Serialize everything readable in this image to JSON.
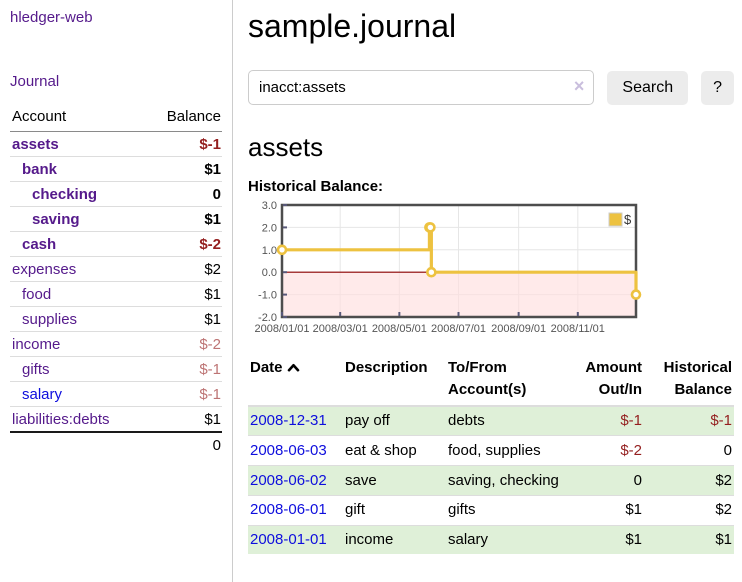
{
  "sidebar": {
    "app_title": "hledger-web",
    "journal_link": "Journal",
    "accounts_header": {
      "account": "Account",
      "balance": "Balance"
    },
    "accounts": [
      {
        "name": "assets",
        "depth": 0,
        "bold": true,
        "balance": "$-1",
        "negative": "strong"
      },
      {
        "name": "bank",
        "depth": 1,
        "bold": true,
        "balance": "$1",
        "negative": "none"
      },
      {
        "name": "checking",
        "depth": 2,
        "bold": true,
        "balance": "0",
        "negative": "none"
      },
      {
        "name": "saving",
        "depth": 2,
        "bold": true,
        "balance": "$1",
        "negative": "none"
      },
      {
        "name": "cash",
        "depth": 1,
        "bold": true,
        "balance": "$-2",
        "negative": "strong"
      },
      {
        "name": "expenses",
        "depth": 0,
        "bold": false,
        "balance": "$2",
        "negative": "none"
      },
      {
        "name": "food",
        "depth": 1,
        "bold": false,
        "balance": "$1",
        "negative": "none"
      },
      {
        "name": "supplies",
        "depth": 1,
        "bold": false,
        "balance": "$1",
        "negative": "none"
      },
      {
        "name": "income",
        "depth": 0,
        "bold": false,
        "balance": "$-2",
        "negative": "muted"
      },
      {
        "name": "gifts",
        "depth": 1,
        "bold": false,
        "balance": "$-1",
        "negative": "muted"
      },
      {
        "name": "salary",
        "depth": 1,
        "bold": false,
        "balance": "$-1",
        "negative": "muted",
        "link_color": "blue"
      },
      {
        "name": "liabilities:debts",
        "depth": 0,
        "bold": false,
        "balance": "$1",
        "negative": "none"
      }
    ],
    "total": "0"
  },
  "main": {
    "title": "sample.journal",
    "search": {
      "value": "inacct:assets",
      "clear_icon": "×",
      "button": "Search",
      "help_button": "?"
    },
    "account_heading": "assets",
    "chart_label": "Historical Balance:"
  },
  "chart_data": {
    "type": "line",
    "title": "Historical Balance",
    "step": true,
    "series": [
      {
        "name": "$",
        "color": "#edc240",
        "points": [
          [
            "2008-01-01",
            1
          ],
          [
            "2008-06-01",
            2
          ],
          [
            "2008-06-02",
            2
          ],
          [
            "2008-06-03",
            0
          ],
          [
            "2008-12-31",
            -1
          ]
        ]
      }
    ],
    "xlim": [
      "2008-01-01",
      "2008-12-31"
    ],
    "ylim": [
      -2,
      3
    ],
    "x_ticks": [
      "2008/01/01",
      "2008/03/01",
      "2008/05/01",
      "2008/07/01",
      "2008/09/01",
      "2008/11/01"
    ],
    "y_ticks": [
      "3.0",
      "2.0",
      "1.0",
      "0.0",
      "-1.0",
      "-2.0"
    ],
    "grid": true,
    "negative_region_color": "#ffdddd",
    "zero_line_color": "#8b0000",
    "plot_border_color": "#4d4d4d",
    "grid_color": "#e6e6e6",
    "legend": {
      "label": "$",
      "position": "top-right"
    }
  },
  "register": {
    "headers": {
      "date": "Date",
      "description": "Description",
      "accounts": "To/From Account(s)",
      "amount": "Amount Out/In",
      "balance": "Historical Balance"
    },
    "rows": [
      {
        "date": "2008-12-31",
        "description": "pay off",
        "accounts": "debts",
        "amount": "$-1",
        "amount_neg": true,
        "balance": "$-1",
        "balance_neg": true,
        "highlight": true
      },
      {
        "date": "2008-06-03",
        "description": "eat & shop",
        "accounts": "food, supplies",
        "amount": "$-2",
        "amount_neg": true,
        "balance": "0",
        "balance_neg": false,
        "highlight": false
      },
      {
        "date": "2008-06-02",
        "description": "save",
        "accounts": "saving, checking",
        "amount": "0",
        "amount_neg": false,
        "balance": "$2",
        "balance_neg": false,
        "highlight": true
      },
      {
        "date": "2008-06-01",
        "description": "gift",
        "accounts": "gifts",
        "amount": "$1",
        "amount_neg": false,
        "balance": "$2",
        "balance_neg": false,
        "highlight": false
      },
      {
        "date": "2008-01-01",
        "description": "income",
        "accounts": "salary",
        "amount": "$1",
        "amount_neg": false,
        "balance": "$1",
        "balance_neg": false,
        "highlight": true
      }
    ]
  },
  "colors": {
    "link_purple": "#551A8B",
    "link_blue": "#0e0edd",
    "negative_strong": "#941f1f",
    "negative_muted": "#bd7474",
    "row_highlight": "#dff0d8",
    "series_gold": "#edc240"
  }
}
